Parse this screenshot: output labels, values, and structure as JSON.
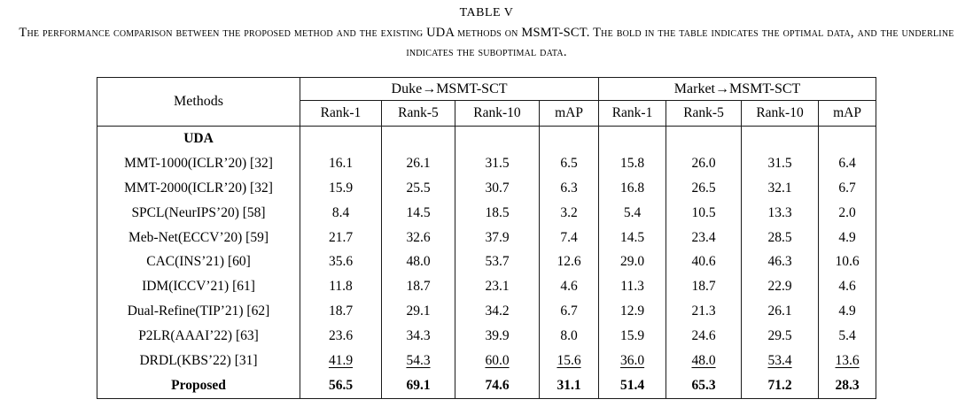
{
  "caption": {
    "label": "TABLE V",
    "text": "The performance comparison between the proposed method and the existing UDA methods on MSMT-SCT. The bold in the table indicates the optimal data, and the underline indicates the suboptimal data."
  },
  "table": {
    "methods_header": "Methods",
    "groups": [
      {
        "label": "Duke→MSMT-SCT",
        "columns": [
          "Rank-1",
          "Rank-5",
          "Rank-10",
          "mAP"
        ]
      },
      {
        "label": "Market→MSMT-SCT",
        "columns": [
          "Rank-1",
          "Rank-5",
          "Rank-10",
          "mAP"
        ]
      }
    ],
    "rows": [
      {
        "method": "UDA",
        "values": [
          "",
          "",
          "",
          "",
          "",
          "",
          "",
          ""
        ],
        "style": "section"
      },
      {
        "method": "MMT-1000(ICLR’20) [32]",
        "values": [
          "16.1",
          "26.1",
          "31.5",
          "6.5",
          "15.8",
          "26.0",
          "31.5",
          "6.4"
        ],
        "style": "normal"
      },
      {
        "method": "MMT-2000(ICLR’20) [32]",
        "values": [
          "15.9",
          "25.5",
          "30.7",
          "6.3",
          "16.8",
          "26.5",
          "32.1",
          "6.7"
        ],
        "style": "normal"
      },
      {
        "method": "SPCL(NeurIPS’20) [58]",
        "values": [
          "8.4",
          "14.5",
          "18.5",
          "3.2",
          "5.4",
          "10.5",
          "13.3",
          "2.0"
        ],
        "style": "normal"
      },
      {
        "method": "Meb-Net(ECCV’20) [59]",
        "values": [
          "21.7",
          "32.6",
          "37.9",
          "7.4",
          "14.5",
          "23.4",
          "28.5",
          "4.9"
        ],
        "style": "normal"
      },
      {
        "method": "CAC(INS’21) [60]",
        "values": [
          "35.6",
          "48.0",
          "53.7",
          "12.6",
          "29.0",
          "40.6",
          "46.3",
          "10.6"
        ],
        "style": "normal"
      },
      {
        "method": "IDM(ICCV’21) [61]",
        "values": [
          "11.8",
          "18.7",
          "23.1",
          "4.6",
          "11.3",
          "18.7",
          "22.9",
          "4.6"
        ],
        "style": "normal"
      },
      {
        "method": "Dual-Refine(TIP’21) [62]",
        "values": [
          "18.7",
          "29.1",
          "34.2",
          "6.7",
          "12.9",
          "21.3",
          "26.1",
          "4.9"
        ],
        "style": "normal"
      },
      {
        "method": "P2LR(AAAI’22) [63]",
        "values": [
          "23.6",
          "34.3",
          "39.9",
          "8.0",
          "15.9",
          "24.6",
          "29.5",
          "5.4"
        ],
        "style": "normal"
      },
      {
        "method": "DRDL(KBS’22) [31]",
        "values": [
          "41.9",
          "54.3",
          "60.0",
          "15.6",
          "36.0",
          "48.0",
          "53.4",
          "13.6"
        ],
        "style": "underline"
      },
      {
        "method": "Proposed",
        "values": [
          "56.5",
          "69.1",
          "74.6",
          "31.1",
          "51.4",
          "65.3",
          "71.2",
          "28.3"
        ],
        "style": "bold"
      }
    ]
  }
}
